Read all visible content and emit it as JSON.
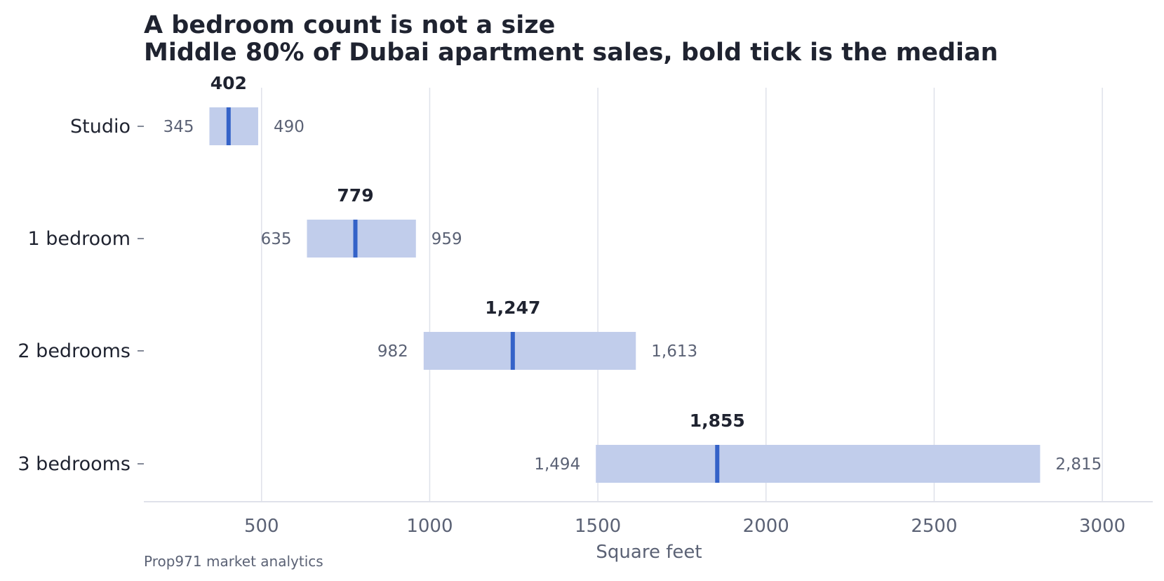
{
  "title": "A bedroom count is not a size",
  "subtitle": "Middle 80% of Dubai apartment sales, bold tick is the median",
  "source": "Prop971 market analytics",
  "colors": {
    "range_bar": "#c1cdeb",
    "median_tick": "#3462c8",
    "grid": "#dfe1ea",
    "text_dark": "#1f2330",
    "text_muted": "#5b6275"
  },
  "chart_data": {
    "type": "bar",
    "orientation": "horizontal",
    "subtype": "range-with-median",
    "categories": [
      "Studio",
      "1 bedroom",
      "2 bedrooms",
      "3 bedrooms"
    ],
    "series": [
      {
        "name": "p10",
        "values": [
          345,
          635,
          982,
          1494
        ],
        "labels": [
          "345",
          "635",
          "982",
          "1,494"
        ]
      },
      {
        "name": "median",
        "values": [
          402,
          779,
          1247,
          1855
        ],
        "labels": [
          "402",
          "779",
          "1,247",
          "1,855"
        ]
      },
      {
        "name": "p90",
        "values": [
          490,
          959,
          1613,
          2815
        ],
        "labels": [
          "490",
          "959",
          "1,613",
          "2,815"
        ]
      }
    ],
    "xlabel": "Square feet",
    "ylabel": "",
    "xlim": [
      150,
      3150
    ],
    "xticks": [
      500,
      1000,
      1500,
      2000,
      2500,
      3000
    ],
    "xtick_labels": [
      "500",
      "1000",
      "1500",
      "2000",
      "2500",
      "3000"
    ],
    "grid": "vertical",
    "legend": "none"
  }
}
